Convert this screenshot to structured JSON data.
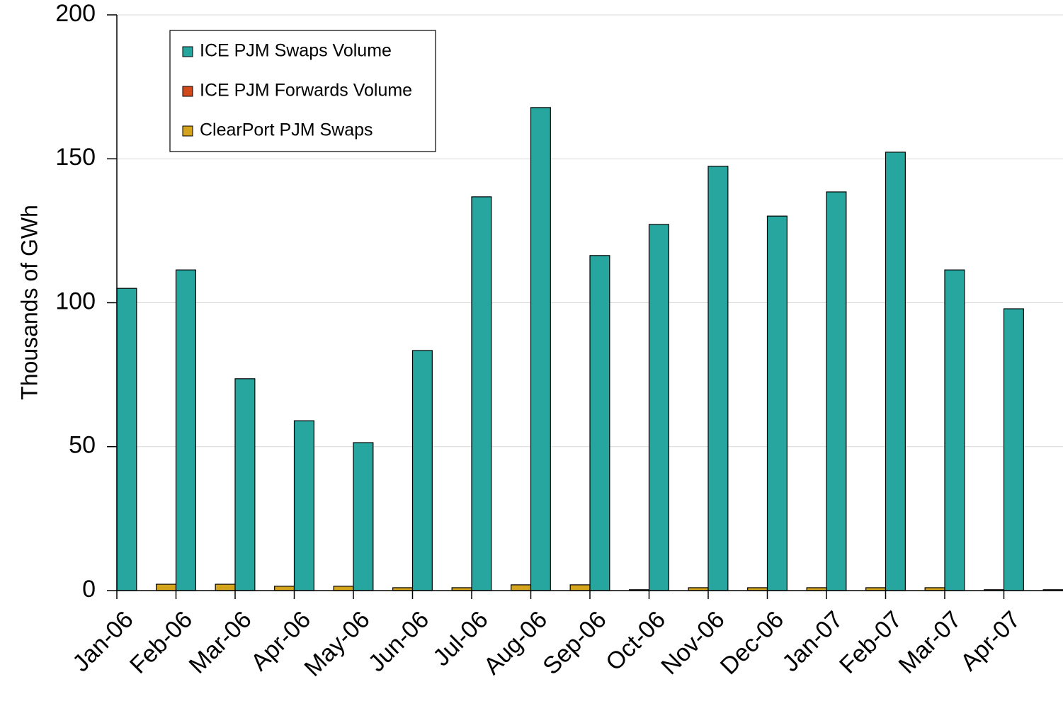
{
  "chart_data": {
    "type": "bar",
    "y_label": "Thousands of GWh",
    "categories": [
      "Jan-06",
      "Feb-06",
      "Mar-06",
      "Apr-06",
      "May-06",
      "Jun-06",
      "Jul-06",
      "Aug-06",
      "Sep-06",
      "Oct-06",
      "Nov-06",
      "Dec-06",
      "Jan-07",
      "Feb-07",
      "Mar-07",
      "Apr-07"
    ],
    "series": [
      {
        "name": "ICE PJM Swaps Volume",
        "color": "#26a69f",
        "values": [
          105,
          111.4,
          73.6,
          59,
          51.4,
          83.4,
          136.8,
          167.8,
          116.4,
          127.2,
          147.4,
          130.1,
          138.5,
          152.3,
          111.4,
          97.9
        ]
      },
      {
        "name": "ICE PJM Forwards Volume",
        "color": "#d04a1c",
        "values": [
          0,
          0,
          0,
          0,
          0,
          0,
          0,
          0,
          0,
          0,
          0,
          0,
          0,
          0,
          0,
          0
        ]
      },
      {
        "name": "ClearPort PJM Swaps",
        "color": "#d4a51c",
        "values": [
          2.2,
          2.2,
          1.5,
          1.5,
          1,
          1,
          2,
          2,
          0.3,
          1,
          1,
          1,
          1,
          1,
          0.3,
          0.3
        ]
      }
    ],
    "ylim": [
      0,
      200
    ],
    "yticks": [
      0,
      50,
      100,
      150,
      200
    ],
    "grid": true,
    "legend": "top-left"
  }
}
